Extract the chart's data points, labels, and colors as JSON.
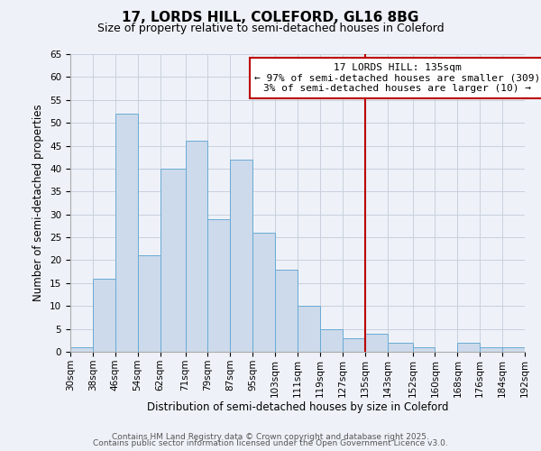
{
  "title": "17, LORDS HILL, COLEFORD, GL16 8BG",
  "subtitle": "Size of property relative to semi-detached houses in Coleford",
  "xlabel": "Distribution of semi-detached houses by size in Coleford",
  "ylabel": "Number of semi-detached properties",
  "bins": [
    30,
    38,
    46,
    54,
    62,
    71,
    79,
    87,
    95,
    103,
    111,
    119,
    127,
    135,
    143,
    152,
    160,
    168,
    176,
    184,
    192
  ],
  "counts": [
    1,
    16,
    52,
    21,
    40,
    46,
    29,
    42,
    26,
    18,
    10,
    5,
    3,
    4,
    2,
    1,
    0,
    2,
    1,
    1
  ],
  "bar_facecolor": "#ccdaeb",
  "bar_edgecolor": "#6aaad4",
  "grid_color": "#c8d0dc",
  "background_color": "#eef2f8",
  "vline_x": 135,
  "vline_color": "#bb0000",
  "annotation_line1": "17 LORDS HILL: 135sqm",
  "annotation_line2": "← 97% of semi-detached houses are smaller (309)",
  "annotation_line3": "3% of semi-detached houses are larger (10) →",
  "annotation_box_color": "#bb0000",
  "ylim": [
    0,
    65
  ],
  "yticks": [
    0,
    5,
    10,
    15,
    20,
    25,
    30,
    35,
    40,
    45,
    50,
    55,
    60,
    65
  ],
  "tick_labels": [
    "30sqm",
    "38sqm",
    "46sqm",
    "54sqm",
    "62sqm",
    "71sqm",
    "79sqm",
    "87sqm",
    "95sqm",
    "103sqm",
    "111sqm",
    "119sqm",
    "127sqm",
    "135sqm",
    "143sqm",
    "152sqm",
    "160sqm",
    "168sqm",
    "176sqm",
    "184sqm",
    "192sqm"
  ],
  "footer_line1": "Contains HM Land Registry data © Crown copyright and database right 2025.",
  "footer_line2": "Contains public sector information licensed under the Open Government Licence v3.0.",
  "title_fontsize": 11,
  "subtitle_fontsize": 9,
  "label_fontsize": 8.5,
  "tick_fontsize": 7.5,
  "annotation_fontsize": 8,
  "footer_fontsize": 6.5
}
